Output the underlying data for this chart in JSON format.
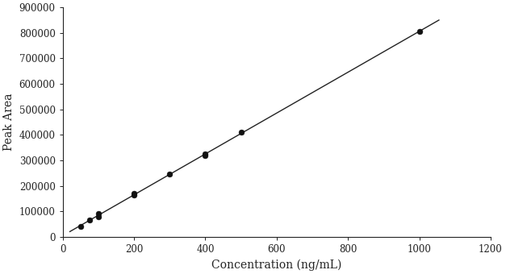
{
  "x_data": [
    50,
    75,
    100,
    100,
    200,
    200,
    300,
    400,
    400,
    500,
    1000
  ],
  "y_data": [
    40000,
    65000,
    80000,
    90000,
    165000,
    170000,
    245000,
    320000,
    325000,
    410000,
    805000
  ],
  "line_color": "#222222",
  "marker_color": "#111111",
  "marker_size": 5,
  "xlabel": "Concentration (ng/mL)",
  "ylabel": "Peak Area",
  "xlim": [
    0,
    1200
  ],
  "ylim": [
    0,
    900000
  ],
  "xticks": [
    0,
    200,
    400,
    600,
    800,
    1000,
    1200
  ],
  "yticks": [
    0,
    100000,
    200000,
    300000,
    400000,
    500000,
    600000,
    700000,
    800000,
    900000
  ],
  "background_color": "#ffffff",
  "axis_color": "#222222",
  "font_size_label": 10,
  "font_size_tick": 8.5,
  "line_width": 1.0,
  "figsize": [
    6.27,
    3.4
  ],
  "dpi": 100
}
